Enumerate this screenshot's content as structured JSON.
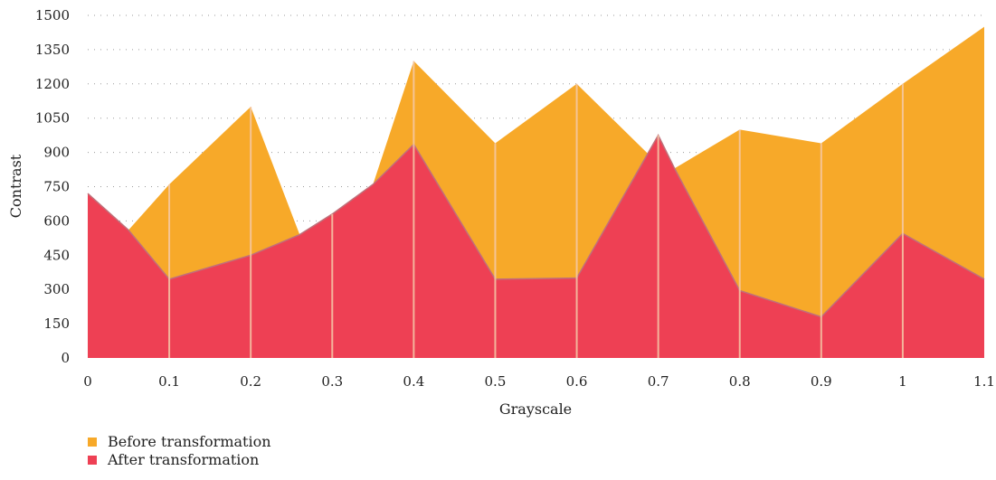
{
  "chart_data": {
    "type": "area",
    "title": "",
    "xlabel": "Grayscale",
    "ylabel": "Contrast",
    "x": [
      0,
      0.05,
      0.1,
      0.2,
      0.26,
      0.3,
      0.35,
      0.4,
      0.5,
      0.6,
      0.7,
      0.72,
      0.8,
      0.9,
      1,
      1.1
    ],
    "x_ticks": [
      "0",
      "0.1",
      "0.2",
      "0.3",
      "0.4",
      "0.5",
      "0.6",
      "0.7",
      "0.8",
      "0.9",
      "1",
      "1.1"
    ],
    "y_ticks": [
      "0",
      "150",
      "300",
      "450",
      "600",
      "750",
      "900",
      "1050",
      "1200",
      "1350",
      "1500"
    ],
    "xlim": [
      0,
      1.1
    ],
    "ylim": [
      0,
      1500
    ],
    "grid": "horizontal-dotted",
    "legend_position": "bottom-left",
    "series": [
      {
        "name": "Before transformation",
        "color": "#F7A929",
        "values": [
          720,
          560,
          760,
          1100,
          540,
          630,
          760,
          1300,
          940,
          1200,
          850,
          830,
          1000,
          940,
          1200,
          1450
        ]
      },
      {
        "name": "After transformation",
        "color": "#EE4054",
        "values": [
          720,
          560,
          345,
          450,
          540,
          630,
          760,
          935,
          345,
          350,
          975,
          830,
          295,
          180,
          545,
          345
        ]
      }
    ]
  }
}
